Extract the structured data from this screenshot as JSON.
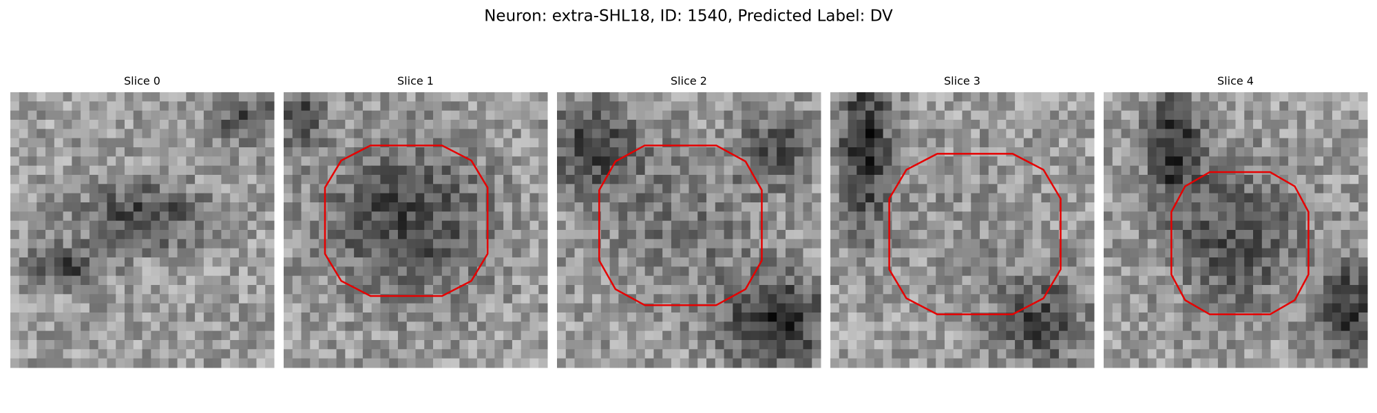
{
  "title": "Neuron: extra-SHL18, ID: 1540, Predicted Label: DV",
  "panels": [
    {
      "title": "Slice 0"
    },
    {
      "title": "Slice 1"
    },
    {
      "title": "Slice 2"
    },
    {
      "title": "Slice 3"
    },
    {
      "title": "Slice 4"
    }
  ]
}
